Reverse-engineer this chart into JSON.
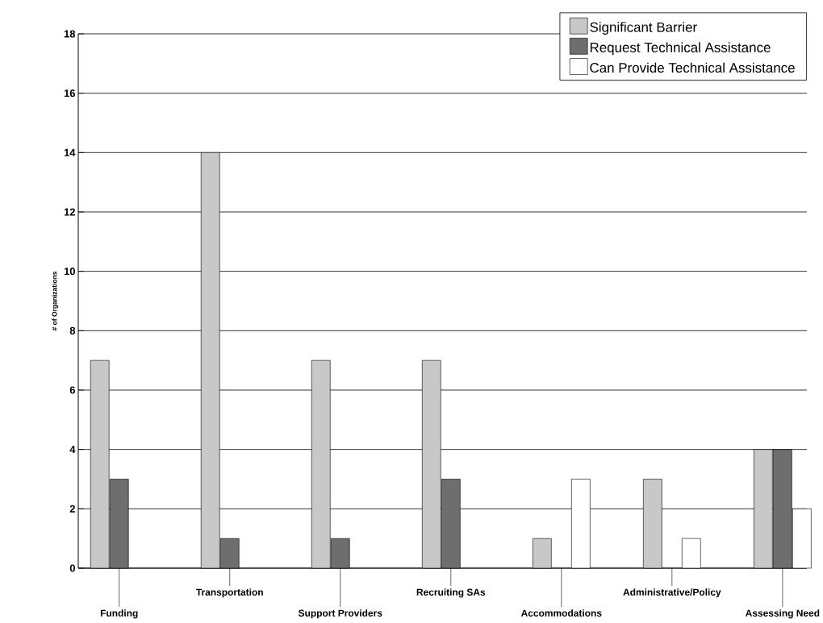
{
  "chart_data": {
    "type": "bar",
    "ylabel": "# of Organizations",
    "categories": [
      "Funding",
      "Transportation",
      "Support Providers",
      "Recruiting SAs",
      "Accommodations",
      "Administrative/Policy",
      "Assessing Need"
    ],
    "series": [
      {
        "name": "Significant Barrier",
        "color": "#c8c8c8",
        "values": [
          7,
          14,
          7,
          7,
          1,
          3,
          4
        ]
      },
      {
        "name": "Request Technical Assistance",
        "color": "#6e6e6e",
        "values": [
          3,
          1,
          1,
          3,
          null,
          null,
          4
        ]
      },
      {
        "name": "Can Provide Technical Assistance",
        "color": "#ffffff",
        "values": [
          null,
          null,
          null,
          null,
          3,
          1,
          2
        ]
      }
    ],
    "ylim": [
      0,
      18
    ],
    "yticks": [
      0,
      2,
      4,
      6,
      8,
      10,
      12,
      14,
      16,
      18
    ],
    "grid": "y",
    "legend": "top right"
  }
}
